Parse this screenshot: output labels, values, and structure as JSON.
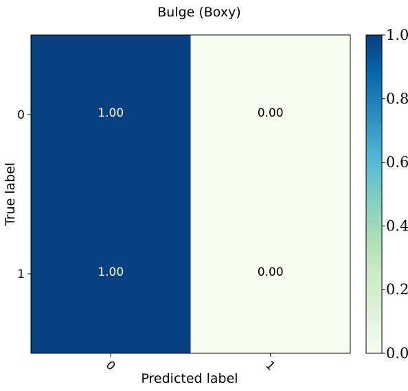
{
  "chart_data": {
    "type": "heatmap",
    "title": "Bulge (Boxy)",
    "xlabel": "Predicted label",
    "ylabel": "True label",
    "x_categories": [
      "0",
      "1"
    ],
    "y_categories": [
      "0",
      "1"
    ],
    "values": [
      [
        1.0,
        0.0
      ],
      [
        1.0,
        0.0
      ]
    ],
    "cell_labels": [
      [
        "1.00",
        "0.00"
      ],
      [
        "1.00",
        "0.00"
      ]
    ],
    "colorbar": {
      "range": [
        0.0,
        1.0
      ],
      "ticks": [
        "0.0",
        "0.2",
        "0.4",
        "0.6",
        "0.8",
        "1.0"
      ],
      "colormap": "GnBu"
    },
    "colors": {
      "high": "#084081",
      "low": "#f7fcf0"
    }
  }
}
